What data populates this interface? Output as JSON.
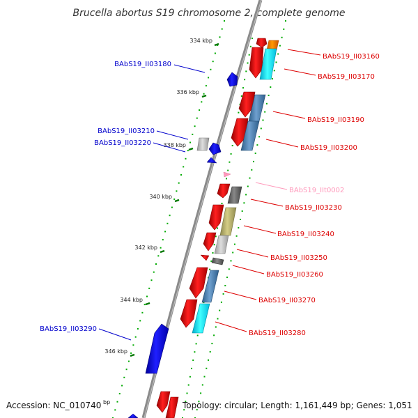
{
  "title": "Brucella abortus S19 chromosome 2, complete genome",
  "footer": {
    "accession": "Accession: NC_010740",
    "bp": "bp",
    "topology": "Topology: circular; Length: 1,161,449 bp; Genes: 1,051"
  },
  "ticks": [
    "334 kbp",
    "336 kbp",
    "338 kbp",
    "340 kbp",
    "342 kbp",
    "344 kbp",
    "346 kbp"
  ],
  "labels": {
    "forward": [
      "BAbS19_II03160",
      "BAbS19_II03170",
      "BAbS19_II03190",
      "BAbS19_II03200",
      "BAbS19_IIt0002",
      "BAbS19_II03230",
      "BAbS19_II03240",
      "BAbS19_II03250",
      "BAbS19_II03260",
      "BAbS19_II03270",
      "BAbS19_II03280"
    ],
    "reverse": [
      "BAbS19_II03180",
      "BAbS19_II03210",
      "BAbS19_II03220",
      "BAbS19_II03290"
    ]
  },
  "colors": {
    "forward_label": "#dd0000",
    "reverse_label": "#0000cc",
    "trna_label": "#ff99bb",
    "backbone": "#888888",
    "tick": "#007700",
    "dot": "#00aa00"
  }
}
